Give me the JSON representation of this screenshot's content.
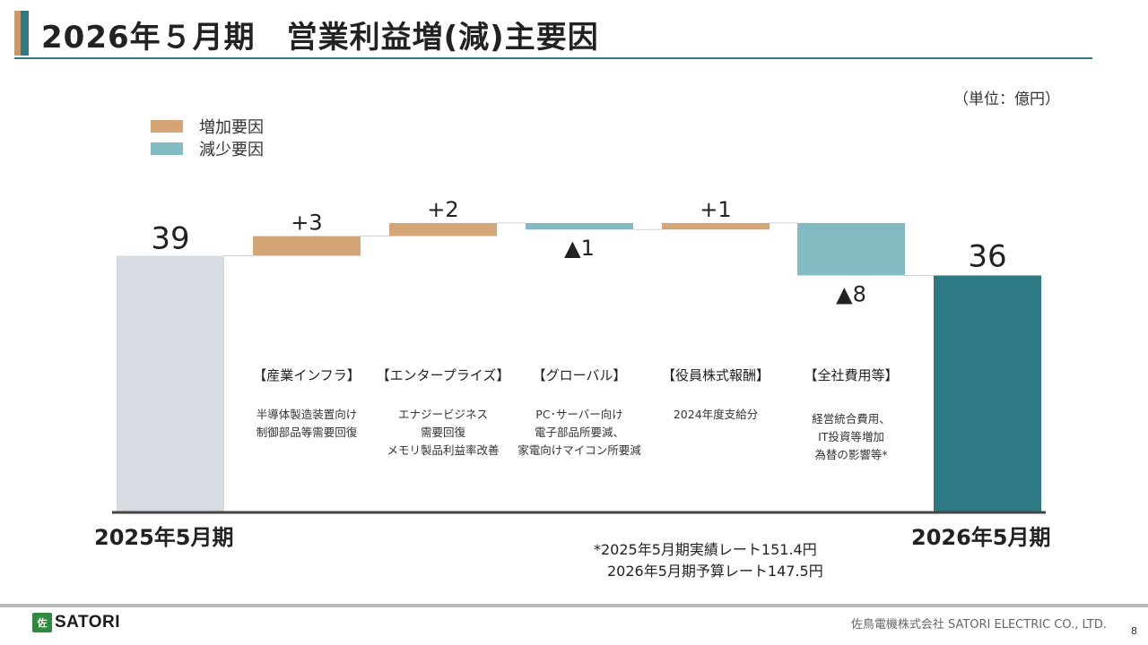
{
  "header": {
    "title": "2026年５月期　営業利益増(減)主要因"
  },
  "unit_label": "（単位：億円）",
  "legend": [
    {
      "label": "増加要因",
      "color": "#d4a677"
    },
    {
      "label": "減少要因",
      "color": "#82bcc2"
    }
  ],
  "chart_data": {
    "type": "waterfall",
    "title": "2026年５月期　営業利益増(減)主要因",
    "unit": "億円",
    "start": {
      "label": "2025年5月期",
      "value": 39
    },
    "end": {
      "label": "2026年5月期",
      "value": 36
    },
    "steps": [
      {
        "category": "【産業インフラ】",
        "delta": 3,
        "label": "+3",
        "lines": [
          "半導体製造装置向け",
          "制御部品等需要回復"
        ]
      },
      {
        "category": "【エンタープライズ】",
        "delta": 2,
        "label": "+2",
        "lines": [
          "エナジービジネス",
          "需要回復",
          "メモリ製品利益率改善"
        ]
      },
      {
        "category": "【グローバル】",
        "delta": -1,
        "label": "▲1",
        "lines": [
          "PC･サーバー向け",
          "電子部品所要減、",
          "家電向けマイコン所要減"
        ]
      },
      {
        "category": "【役員株式報酬】",
        "delta": 1,
        "label": "+1",
        "lines": [
          "2024年度支給分"
        ]
      },
      {
        "category": "【全社費用等】",
        "delta": -8,
        "label": "▲8",
        "lines": [
          "経営統合費用、",
          "IT投資等増加",
          "為替の影響等*"
        ]
      }
    ],
    "colors": {
      "start": "#d7dce2",
      "end": "#2e7a84",
      "increase": "#d4a677",
      "decrease": "#82bcc2"
    }
  },
  "notes": [
    "*2025年5月期実績レート151.4円",
    "2026年5月期予算レート147.5円"
  ],
  "footer": {
    "logo_text": "SATORI",
    "logo_mark": "佐",
    "company": "佐鳥電機株式会社  SATORI ELECTRIC CO., LTD.",
    "page": "8"
  }
}
